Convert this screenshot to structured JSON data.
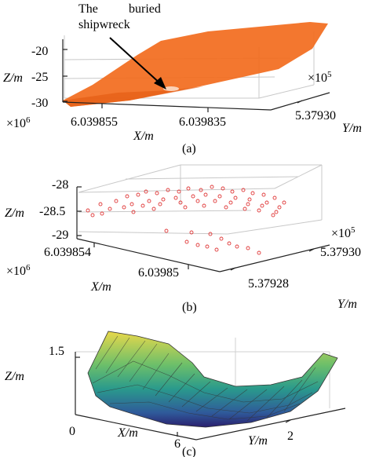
{
  "panels": [
    {
      "caption": "(a)",
      "annotation": [
        "The",
        "buried",
        "shipwreck"
      ],
      "z_label": "Z/m",
      "z_ticks": [
        "-20",
        "-25",
        "-30"
      ],
      "x_label": "X/m",
      "x_multiplier": "×10",
      "x_multiplier_exp": "6",
      "x_ticks": [
        "6.039855",
        "6.039835"
      ],
      "y_label": "Y/m",
      "y_multiplier": "×10",
      "y_multiplier_exp": "5",
      "y_ticks": [
        "5.37930"
      ],
      "surface_color": "#f26b1d"
    },
    {
      "caption": "(b)",
      "z_label": "Z/m",
      "z_ticks": [
        "-28",
        "-28.5",
        "-29"
      ],
      "x_label": "X/m",
      "x_multiplier": "×10",
      "x_multiplier_exp": "6",
      "x_ticks": [
        "6.039854",
        "6.03985"
      ],
      "y_label": "Y/m",
      "y_multiplier": "×10",
      "y_multiplier_exp": "5",
      "y_ticks": [
        "5.37930",
        "5.37928"
      ],
      "point_color": "#e03a3a"
    },
    {
      "caption": "(c)",
      "z_label": "Z/m",
      "z_ticks": [
        "1.5"
      ],
      "x_label": "X/m",
      "x_ticks": [
        "0",
        "6"
      ],
      "y_label": "Y/m",
      "y_ticks": [
        "2"
      ]
    }
  ]
}
